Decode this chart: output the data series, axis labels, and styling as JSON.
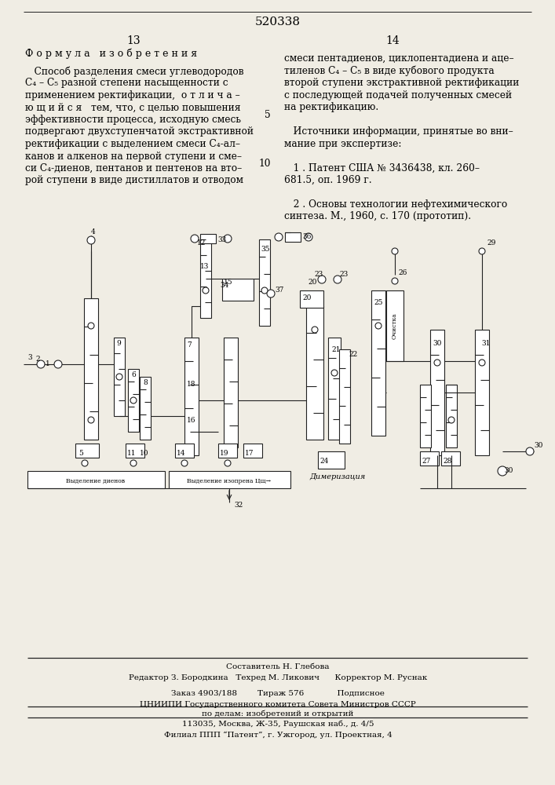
{
  "patent_number": "520338",
  "page_left": "13",
  "page_right": "14",
  "section_title": "Ф о р м у л а   и з о б р е т е н и я",
  "left_text_lines": [
    "   Способ разделения смеси углеводородов",
    "C₄ – C₅ разной степени насыщенности с",
    "применением ректификации,  о т л и ч а –",
    "ю щ и й с я   тем, что, с целью повышения",
    "эффективности процесса, исходную смесь",
    "подвергают двухступенчатой экстрактивной",
    "ректификации с выделением смеси C₄-ал–",
    "канов и алкенов на первой ступени и сме–",
    "си C₄-диенов, пентанов и пентенов на вто–",
    "рой ступени в виде дистиллатов и отводом"
  ],
  "right_text_lines": [
    "смеси пентадиенов, циклопентадиена и аце–",
    "тиленов C₄ – C₅ в виде кубового продукта",
    "второй ступени экстрактивной ректификации",
    "с последующей подачей полученных смесей",
    "на ректификацию.",
    "",
    "   Источники информации, принятые во вни–",
    "мание при экспертизе:",
    "",
    "   1 . Патент США № 3436438, кл. 260–",
    "681.5, оп. 1969 г.",
    "",
    "   2 . Основы технологии нефтехимического",
    "синтеза. М., 1960, с. 170 (прототип)."
  ],
  "footer_line1": "Составитель Н. Глебова",
  "footer_line2": "Редактор З. Бородкина   Техред М. Ликович      Корректор М. Руснак",
  "footer_line3": "Заказ 4903/188        Тираж 576             Подписное",
  "footer_line4": "ЦНИИПИ Государственного комитета Совета Министров СССР",
  "footer_line5": "по делам: изобретений и открытий",
  "footer_line6": "113035, Москва, Ж-35, Раушская наб., д. 4/5",
  "footer_line7": "Филиал ППП “Патент”, г. Ужгород, ул. Проектная, 4",
  "bg_color": "#f0ede4"
}
